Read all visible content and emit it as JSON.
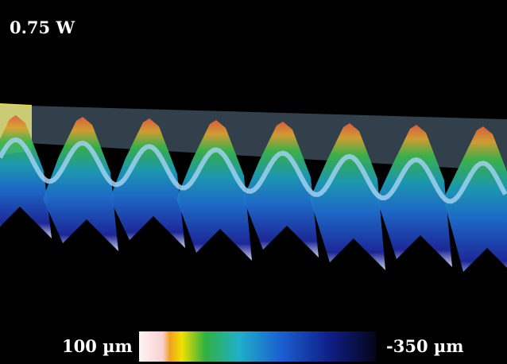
{
  "label": "0.75 W",
  "colorbar": {
    "max_label": "100 µm",
    "min_label": "-350 µm"
  }
}
